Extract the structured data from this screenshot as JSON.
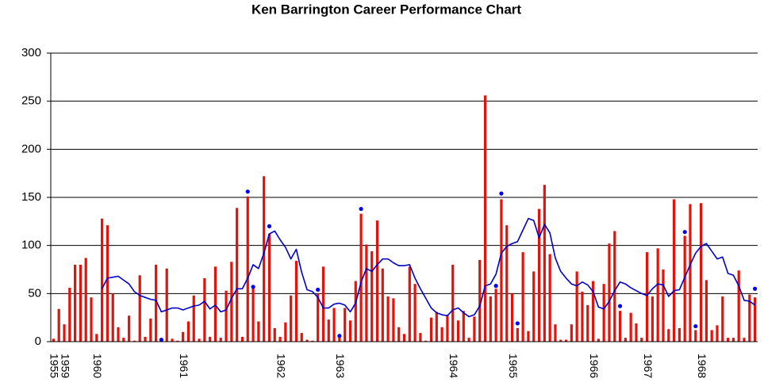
{
  "chart_data": {
    "type": "bar",
    "title": "Ken Barrington Career Performance Chart",
    "categories": [
      "1955",
      null,
      "1959",
      null,
      null,
      null,
      null,
      null,
      "1960",
      null,
      null,
      null,
      null,
      null,
      null,
      null,
      null,
      null,
      null,
      null,
      null,
      null,
      null,
      null,
      "1961",
      null,
      null,
      null,
      null,
      null,
      null,
      null,
      null,
      null,
      null,
      null,
      null,
      null,
      null,
      null,
      null,
      null,
      "1962",
      null,
      null,
      null,
      null,
      null,
      null,
      null,
      null,
      null,
      null,
      "1963",
      null,
      null,
      null,
      null,
      null,
      null,
      null,
      null,
      null,
      null,
      null,
      null,
      null,
      null,
      null,
      null,
      null,
      null,
      null,
      null,
      "1964",
      null,
      null,
      null,
      null,
      null,
      null,
      null,
      null,
      null,
      null,
      "1965",
      null,
      null,
      null,
      null,
      null,
      null,
      null,
      null,
      null,
      null,
      null,
      null,
      null,
      null,
      "1966",
      null,
      null,
      null,
      null,
      null,
      null,
      null,
      null,
      null,
      "1967",
      null,
      null,
      null,
      null,
      null,
      null,
      null,
      null,
      null,
      "1968",
      null,
      null,
      null,
      null,
      null,
      null,
      null,
      null,
      null,
      null
    ],
    "series": [
      {
        "type": "bar",
        "color": "#e3120b",
        "values": [
          3,
          34,
          18,
          56,
          80,
          80,
          87,
          46,
          8,
          128,
          121,
          50,
          15,
          4,
          27,
          1,
          69,
          5,
          24,
          80,
          3,
          76,
          3,
          1,
          10,
          21,
          48,
          3,
          66,
          5,
          78,
          4,
          53,
          83,
          139,
          5,
          151,
          57,
          21,
          172,
          112,
          14,
          5,
          20,
          48,
          84,
          9,
          2,
          1,
          50,
          78,
          23,
          35,
          5,
          35,
          22,
          63,
          133,
          101,
          94,
          126,
          76,
          47,
          45,
          15,
          8,
          78,
          60,
          9,
          1,
          25,
          31,
          15,
          28,
          80,
          22,
          32,
          4,
          26,
          85,
          256,
          47,
          55,
          148,
          121,
          50,
          14,
          93,
          11,
          73,
          138,
          163,
          91,
          18,
          2,
          2,
          18,
          73,
          52,
          38,
          63,
          3,
          60,
          102,
          115,
          32,
          4,
          30,
          19,
          4,
          93,
          47,
          97,
          75,
          13,
          148,
          14,
          110,
          143,
          12,
          144,
          64,
          12,
          17,
          47,
          4,
          4,
          74,
          4,
          49,
          46
        ]
      },
      {
        "type": "line",
        "color": "#0000c8",
        "values": [
          null,
          null,
          null,
          null,
          null,
          null,
          null,
          null,
          null,
          55,
          66,
          67,
          68,
          64,
          60,
          52,
          48,
          46,
          44,
          43,
          31,
          33,
          35,
          35,
          33,
          35,
          37,
          38,
          42,
          34,
          38,
          31,
          33,
          45,
          55,
          55,
          66,
          80,
          76,
          92,
          112,
          115,
          106,
          98,
          86,
          96,
          72,
          54,
          52,
          46,
          35,
          35,
          39,
          40,
          38,
          31,
          40,
          62,
          76,
          73,
          80,
          86,
          86,
          82,
          79,
          79,
          80,
          66,
          55,
          45,
          35,
          30,
          28,
          27,
          33,
          35,
          30,
          26,
          28,
          37,
          58,
          60,
          70,
          92,
          99,
          102,
          104,
          116,
          128,
          126,
          108,
          122,
          113,
          87,
          73,
          66,
          60,
          58,
          62,
          59,
          52,
          36,
          34,
          42,
          53,
          62,
          60,
          56,
          53,
          50,
          48,
          55,
          60,
          59,
          47,
          53,
          54,
          67,
          80,
          92,
          99,
          102,
          94,
          86,
          88,
          71,
          69,
          58,
          43,
          42,
          38
        ]
      },
      {
        "type": "scatter",
        "color": "#0000ff",
        "values": [
          null,
          null,
          null,
          null,
          null,
          null,
          null,
          null,
          null,
          null,
          null,
          null,
          null,
          null,
          null,
          null,
          null,
          null,
          null,
          null,
          2,
          null,
          null,
          null,
          null,
          null,
          null,
          null,
          null,
          null,
          null,
          null,
          null,
          null,
          null,
          null,
          156,
          57,
          null,
          null,
          120,
          null,
          null,
          null,
          null,
          null,
          null,
          null,
          null,
          54,
          null,
          null,
          null,
          6,
          null,
          null,
          null,
          138,
          null,
          null,
          null,
          null,
          null,
          null,
          null,
          null,
          null,
          null,
          null,
          null,
          null,
          null,
          null,
          null,
          null,
          null,
          null,
          null,
          null,
          null,
          null,
          null,
          58,
          154,
          null,
          null,
          19,
          null,
          null,
          null,
          null,
          null,
          null,
          null,
          null,
          null,
          null,
          null,
          null,
          null,
          null,
          null,
          null,
          null,
          null,
          37,
          null,
          null,
          null,
          null,
          null,
          null,
          null,
          null,
          null,
          null,
          null,
          114,
          null,
          16,
          null,
          null,
          null,
          null,
          null,
          null,
          null,
          null,
          null,
          null,
          55
        ]
      }
    ],
    "ylim": [
      0,
      300
    ],
    "yticks": [
      0,
      50,
      100,
      150,
      200,
      250,
      300
    ],
    "grid": true
  }
}
